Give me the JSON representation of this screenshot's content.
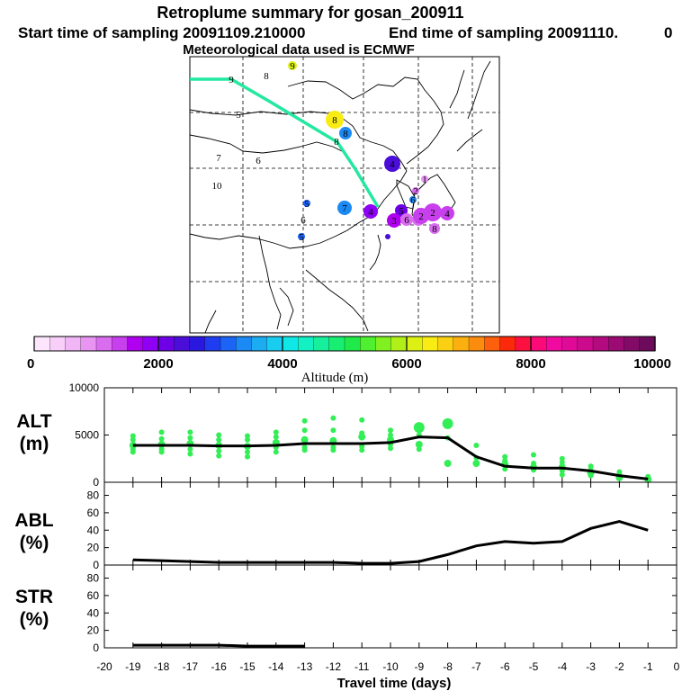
{
  "title": "Retroplume summary for gosan_200911",
  "subtitle_start": "Start time of sampling 20091109.210000",
  "subtitle_end": "End time of sampling 20091110.",
  "subtitle_tail": "0",
  "subtitle_met": "Meteorological data used is ECMWF",
  "colors": {
    "trajectory": "#22e8a0",
    "scatter": "#33ee55",
    "line": "#000000",
    "colorbar": [
      "#fde6fd",
      "#f7cff9",
      "#f0b6f6",
      "#e794f3",
      "#d96cef",
      "#c840ee",
      "#b000f0",
      "#8f00f5",
      "#6e00e6",
      "#4b0dd8",
      "#2a17e0",
      "#1f3cf0",
      "#1c64f5",
      "#1c8af5",
      "#1cacf2",
      "#18cdef",
      "#10e8e8",
      "#12f0c4",
      "#16f09c",
      "#18ee72",
      "#20ea4a",
      "#4ef030",
      "#80f020",
      "#b0f018",
      "#dcf014",
      "#f8ec14",
      "#fcd012",
      "#fcb010",
      "#fc8c0e",
      "#fc600c",
      "#fc2a0a",
      "#fc1040",
      "#fc0a78",
      "#f00aa0",
      "#e00a98",
      "#cc0a8c",
      "#b40a80",
      "#9c0a74",
      "#840a68",
      "#6e0a5c"
    ]
  },
  "colorbar": {
    "ticks": [
      "0",
      "2000",
      "4000",
      "6000",
      "8000",
      "10000"
    ],
    "label": "Altitude (m)"
  },
  "map": {
    "markers": [
      {
        "day": "9",
        "color": "#dcf014",
        "size": 5
      },
      {
        "day": "8",
        "color": "",
        "size": 0
      },
      {
        "day": "9",
        "color": "",
        "size": 0
      },
      {
        "day": "5",
        "color": "",
        "size": 0
      },
      {
        "day": "8",
        "color": "#f8ec14",
        "size": 10
      },
      {
        "day": "8",
        "color": "#1c8af5",
        "size": 7
      },
      {
        "day": "8",
        "color": "",
        "size": 0
      },
      {
        "day": "7",
        "color": "",
        "size": 0
      },
      {
        "day": "6",
        "color": "",
        "size": 0
      },
      {
        "day": "10",
        "color": "",
        "size": 0
      },
      {
        "day": "4",
        "color": "#4b0dd8",
        "size": 9
      },
      {
        "day": "1",
        "color": "#e794f3",
        "size": 4
      },
      {
        "day": "2",
        "color": "#d96cef",
        "size": 4
      },
      {
        "day": "6",
        "color": "#1c8af5",
        "size": 4
      },
      {
        "day": "5",
        "color": "#1c64f5",
        "size": 4
      },
      {
        "day": "6",
        "color": "",
        "size": 0
      },
      {
        "day": "7",
        "color": "#1c8af5",
        "size": 8
      },
      {
        "day": "4",
        "color": "#8f00f5",
        "size": 8
      },
      {
        "day": "5",
        "color": "#6e00e6",
        "size": 7
      },
      {
        "day": "3",
        "color": "#b000f0",
        "size": 8
      },
      {
        "day": "2",
        "color": "#c840ee",
        "size": 10
      },
      {
        "day": "4",
        "color": "#c840ee",
        "size": 8
      },
      {
        "day": "3",
        "color": "#d96cef",
        "size": 7
      },
      {
        "day": "6",
        "color": "#d96cef",
        "size": 7
      },
      {
        "day": "2",
        "color": "#c840ee",
        "size": 9
      },
      {
        "day": "5",
        "color": "#1c64f5",
        "size": 4
      },
      {
        "day": "8",
        "color": "#d96cef",
        "size": 6
      },
      {
        "day": "",
        "color": "#4b0dd8",
        "size": 3
      }
    ]
  },
  "chart_data": [
    {
      "type": "scatter",
      "panel": "ALT",
      "ylabel_lines": [
        "ALT",
        "(m)"
      ],
      "ylim": [
        0,
        10000
      ],
      "yticks": [
        "0",
        "5000",
        "10000"
      ],
      "xlim": [
        -20,
        0
      ],
      "median_line": {
        "x": [
          -19,
          -18,
          -17,
          -16,
          -15,
          -14,
          -13,
          -12,
          -11,
          -10,
          -9,
          -8,
          -7,
          -6,
          -5,
          -4,
          -3,
          -2,
          -1
        ],
        "y": [
          3900,
          3900,
          3900,
          3850,
          3850,
          3900,
          4100,
          4100,
          4100,
          4200,
          4800,
          4700,
          2700,
          1700,
          1500,
          1500,
          1200,
          700,
          350
        ]
      },
      "scatter_points": [
        {
          "x": -19,
          "y": [
            4900,
            4500,
            3900,
            3500,
            3200
          ]
        },
        {
          "x": -18,
          "y": [
            5300,
            4600,
            4000,
            3500,
            3200
          ]
        },
        {
          "x": -17,
          "y": [
            5300,
            4700,
            4100,
            3500,
            3000
          ]
        },
        {
          "x": -16,
          "y": [
            5000,
            4500,
            3900,
            3300,
            2800
          ]
        },
        {
          "x": -15,
          "y": [
            4900,
            4500,
            3800,
            3200,
            2700
          ]
        },
        {
          "x": -14,
          "y": [
            5300,
            4800,
            4200,
            3700,
            3200
          ]
        },
        {
          "x": -13,
          "y": [
            6500,
            5500,
            4500,
            3700,
            3400
          ]
        },
        {
          "x": -12,
          "y": [
            6800,
            5500,
            4400,
            3700,
            3400
          ]
        },
        {
          "x": -11,
          "y": [
            6600,
            5200,
            4800,
            3800,
            3400
          ]
        },
        {
          "x": -10,
          "y": [
            5500,
            5000,
            4500,
            4000,
            3600
          ]
        },
        {
          "x": -9,
          "y": [
            5800,
            5000,
            4000,
            3500
          ]
        },
        {
          "x": -8,
          "y": [
            6200,
            4700,
            2000
          ]
        },
        {
          "x": -7,
          "y": [
            3900,
            2600,
            2000
          ]
        },
        {
          "x": -6,
          "y": [
            2700,
            2300,
            1900,
            1400
          ]
        },
        {
          "x": -5,
          "y": [
            2900,
            2000,
            1600,
            1300
          ]
        },
        {
          "x": -4,
          "y": [
            2500,
            2100,
            1600,
            1200,
            800
          ]
        },
        {
          "x": -3,
          "y": [
            1700,
            1300,
            1000,
            700
          ]
        },
        {
          "x": -2,
          "y": [
            1100,
            800,
            500
          ]
        },
        {
          "x": -1,
          "y": [
            600,
            400,
            300
          ]
        }
      ]
    },
    {
      "type": "line",
      "panel": "ABL",
      "ylabel_lines": [
        "ABL",
        "(%)"
      ],
      "ylim": [
        0,
        95
      ],
      "yticks": [
        "0",
        "20",
        "40",
        "60",
        "80"
      ],
      "x": [
        -19,
        -18,
        -17,
        -16,
        -15,
        -14,
        -13,
        -12,
        -11,
        -10,
        -9,
        -8,
        -7,
        -6,
        -5,
        -4,
        -3,
        -2,
        -1
      ],
      "y": [
        6,
        5,
        4,
        3,
        3,
        3,
        3,
        3,
        2,
        2,
        4,
        12,
        22,
        27,
        25,
        27,
        42,
        50,
        40
      ]
    },
    {
      "type": "line",
      "panel": "STR",
      "ylabel_lines": [
        "STR",
        "(%)"
      ],
      "ylim": [
        0,
        95
      ],
      "yticks": [
        "0",
        "20",
        "40",
        "60",
        "80"
      ],
      "x": [
        -19,
        -18,
        -17,
        -16,
        -15,
        -14,
        -13
      ],
      "y": [
        3,
        3,
        3,
        3,
        2,
        2,
        2
      ]
    }
  ],
  "xaxis": {
    "ticks": [
      "-20",
      "-19",
      "-18",
      "-17",
      "-16",
      "-15",
      "-14",
      "-13",
      "-12",
      "-11",
      "-10",
      "-9",
      "-8",
      "-7",
      "-6",
      "-5",
      "-4",
      "-3",
      "-2",
      "-1",
      "0"
    ],
    "label": "Travel time (days)"
  }
}
